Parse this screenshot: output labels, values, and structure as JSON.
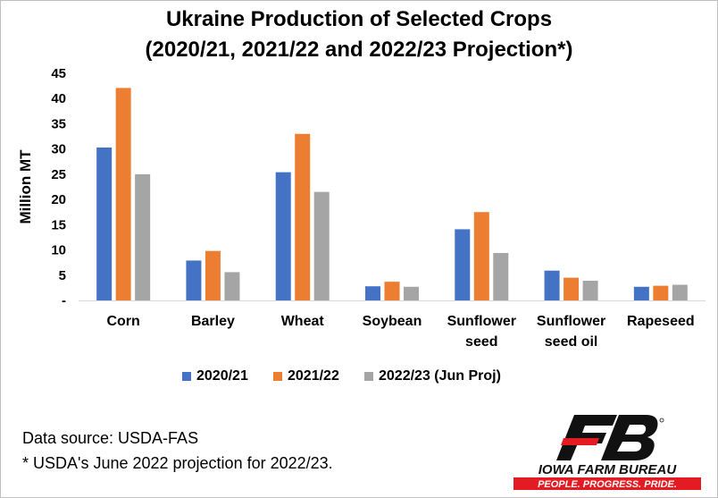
{
  "chart_data": {
    "type": "bar",
    "title_line1": "Ukraine Production of Selected Crops",
    "title_line2": "(2020/21, 2021/22 and 2022/23 Projection*)",
    "ylabel": "Million MT",
    "xlabel": "",
    "ylim": [
      0,
      45
    ],
    "yticks": [
      "-",
      "5",
      "10",
      "15",
      "20",
      "25",
      "30",
      "35",
      "40",
      "45"
    ],
    "categories": [
      [
        "Corn"
      ],
      [
        "Barley"
      ],
      [
        "Wheat"
      ],
      [
        "Soybean"
      ],
      [
        "Sunflower",
        "seed"
      ],
      [
        "Sunflower",
        "seed oil"
      ],
      [
        "Rapeseed"
      ]
    ],
    "series": [
      {
        "name": "2020/21",
        "color": "#4472c4",
        "values": [
          30.3,
          7.9,
          25.4,
          2.8,
          14.1,
          5.9,
          2.7
        ]
      },
      {
        "name": "2021/22",
        "color": "#ed7d31",
        "values": [
          42.1,
          9.8,
          33.0,
          3.7,
          17.5,
          4.5,
          2.9
        ]
      },
      {
        "name": "2022/23 (Jun Proj)",
        "color": "#a5a5a5",
        "values": [
          25.0,
          5.6,
          21.5,
          2.7,
          9.4,
          3.9,
          3.1
        ]
      }
    ],
    "grid": false,
    "legend": "bottom"
  },
  "notes": {
    "source": "Data source: USDA-FAS",
    "footnote": "* USDA's June 2022 projection for 2022/23."
  },
  "logo": {
    "name": "IOWA FARM BUREAU",
    "tagline": "PEOPLE. PROGRESS. PRIDE.",
    "brand_black": "#111111",
    "brand_red": "#e31b23"
  }
}
